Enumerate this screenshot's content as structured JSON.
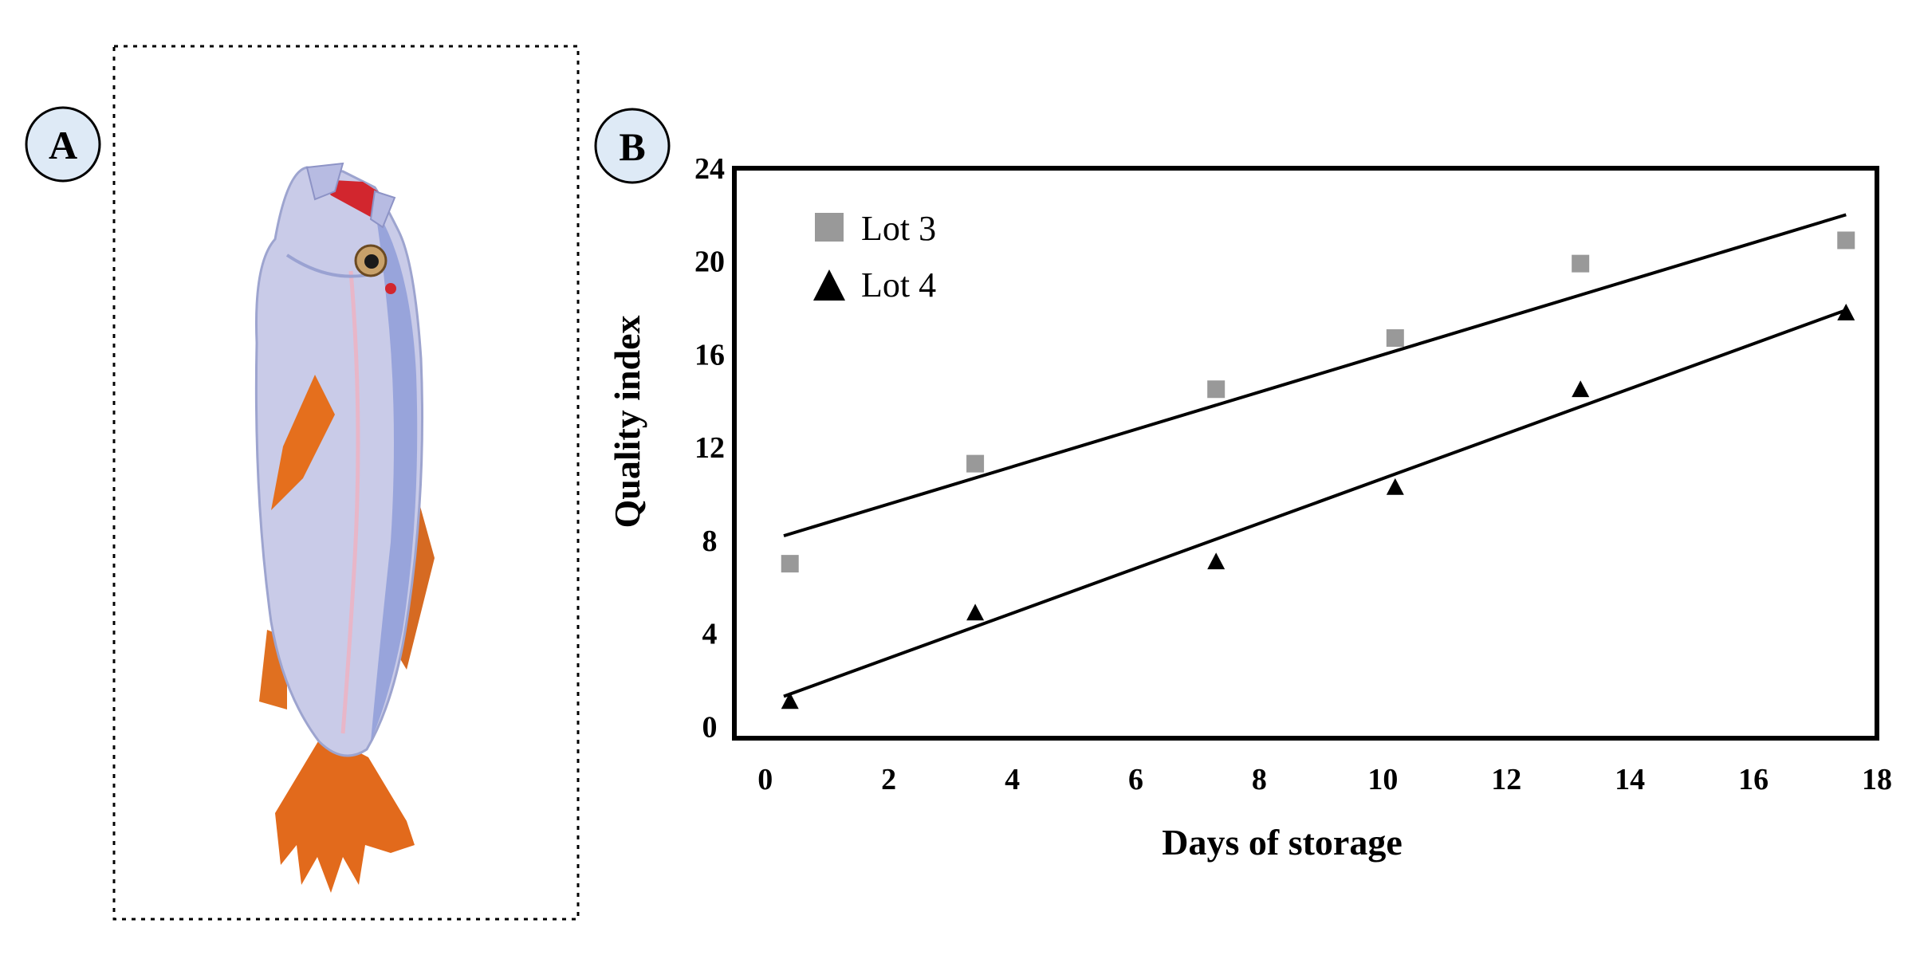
{
  "panels": {
    "a_label": "A",
    "b_label": "B"
  },
  "fish_image": {
    "icon": "fish-photo-icon",
    "colors": {
      "body": "#c9cbe8",
      "back": "#8f9ed8",
      "fin": "#e26a1c",
      "mouth": "#d2262e"
    }
  },
  "chart_data": {
    "type": "scatter",
    "title": "",
    "xlabel": "Days of storage",
    "ylabel": "Quality index",
    "xlim": [
      -0.5,
      18
    ],
    "ylim": [
      -0.5,
      24
    ],
    "xticks": [
      0,
      2,
      4,
      6,
      8,
      10,
      12,
      14,
      16,
      18
    ],
    "yticks": [
      0,
      4,
      8,
      12,
      16,
      20,
      24
    ],
    "legend_position": "top-left",
    "series": [
      {
        "name": "Lot 3",
        "marker": "square",
        "color": "#999999",
        "x": [
          0.4,
          3.4,
          7.3,
          10.2,
          13.2,
          17.5
        ],
        "y": [
          7.0,
          11.3,
          14.5,
          16.7,
          19.9,
          20.9
        ],
        "trendline": {
          "x": [
            0.3,
            17.5
          ],
          "y": [
            8.2,
            22.0
          ]
        }
      },
      {
        "name": "Lot 4",
        "marker": "triangle",
        "color": "#000000",
        "x": [
          0.4,
          3.4,
          7.3,
          10.2,
          13.2,
          17.5
        ],
        "y": [
          1.1,
          4.9,
          7.1,
          10.3,
          14.5,
          17.8
        ],
        "trendline": {
          "x": [
            0.3,
            17.5
          ],
          "y": [
            1.3,
            17.9
          ]
        }
      }
    ]
  }
}
